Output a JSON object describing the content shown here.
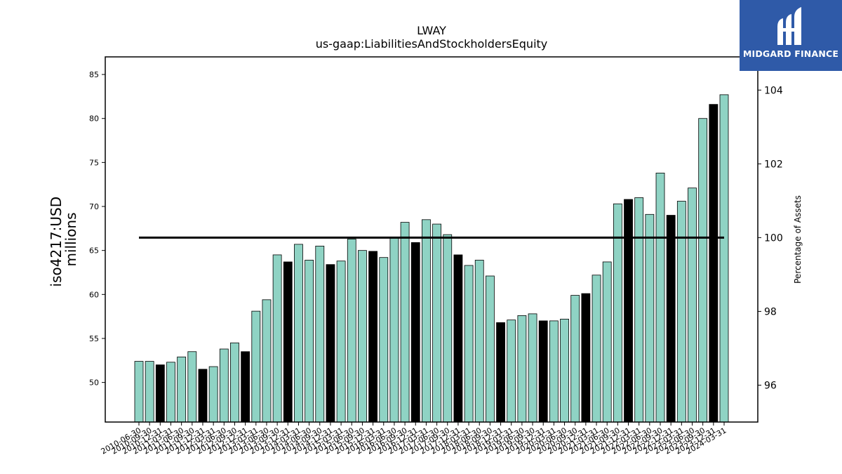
{
  "brand": {
    "name": "MIDGARD FINANCE",
    "color": "#2f5aa8"
  },
  "chart_data": {
    "type": "bar",
    "title": "LWAY",
    "subtitle": "us-gaap:LiabilitiesAndStockholdersEquity",
    "ylabel": "iso4217:USD\nmillions",
    "y2label": "Percentage of Assets",
    "ylim": [
      45.5,
      87
    ],
    "y2lim": [
      95.0,
      104.9
    ],
    "yticks": [
      50,
      55,
      60,
      65,
      70,
      75,
      80,
      85
    ],
    "y2ticks": [
      96,
      98,
      100,
      102,
      104
    ],
    "grid": false,
    "legend": "none",
    "colors": {
      "quarterly": "#8fd3c4",
      "fiscal_year": "#000000",
      "ratio_line": "#000000"
    },
    "categories": [
      "2010-06-30",
      "2010-09-30",
      "2010-12-31",
      "2011-03-31",
      "2011-06-30",
      "2011-09-30",
      "2011-12-31",
      "2012-03-31",
      "2012-06-30",
      "2012-09-30",
      "2012-12-31",
      "2013-03-31",
      "2013-06-30",
      "2013-09-30",
      "2013-12-31",
      "2014-03-31",
      "2014-06-30",
      "2014-09-30",
      "2014-12-31",
      "2015-03-31",
      "2015-06-30",
      "2015-09-30",
      "2015-12-31",
      "2016-03-31",
      "2016-06-30",
      "2016-09-30",
      "2016-12-31",
      "2017-03-31",
      "2017-06-30",
      "2017-09-30",
      "2017-12-31",
      "2018-03-31",
      "2018-06-30",
      "2018-09-30",
      "2018-12-31",
      "2019-03-31",
      "2019-06-30",
      "2019-09-30",
      "2019-12-31",
      "2020-03-31",
      "2020-06-30",
      "2020-09-30",
      "2020-12-31",
      "2021-03-31",
      "2021-06-30",
      "2021-09-30",
      "2021-12-31",
      "2022-03-31",
      "2022-06-30",
      "2022-09-30",
      "2022-12-31",
      "2023-03-31",
      "2023-06-30",
      "2023-09-30",
      "2023-12-31",
      "2024-03-31"
    ],
    "values": [
      52.4,
      52.4,
      52.0,
      52.3,
      52.9,
      53.5,
      51.5,
      51.8,
      53.8,
      54.5,
      53.5,
      58.1,
      59.4,
      64.5,
      63.7,
      65.7,
      63.9,
      65.5,
      63.4,
      63.8,
      66.3,
      65.0,
      64.9,
      64.2,
      66.5,
      68.2,
      65.9,
      68.5,
      68.0,
      66.8,
      64.5,
      63.3,
      63.9,
      62.1,
      56.8,
      57.1,
      57.6,
      57.8,
      57.0,
      57.0,
      57.2,
      59.9,
      60.1,
      62.2,
      63.7,
      70.3,
      70.8,
      71.0,
      69.1,
      73.8,
      69.0,
      70.6,
      72.1,
      80.0,
      81.6,
      82.7
    ],
    "fiscal_year_end": [
      false,
      false,
      true,
      false,
      false,
      false,
      true,
      false,
      false,
      false,
      true,
      false,
      false,
      false,
      true,
      false,
      false,
      false,
      true,
      false,
      false,
      false,
      true,
      false,
      false,
      false,
      true,
      false,
      false,
      false,
      true,
      false,
      false,
      false,
      true,
      false,
      false,
      false,
      true,
      false,
      false,
      false,
      true,
      false,
      false,
      false,
      true,
      false,
      false,
      false,
      true,
      false,
      false,
      false,
      true,
      false
    ],
    "ratio_line": {
      "y2_value": 100,
      "from": "2010-06-30",
      "to": "2024-03-31"
    }
  }
}
